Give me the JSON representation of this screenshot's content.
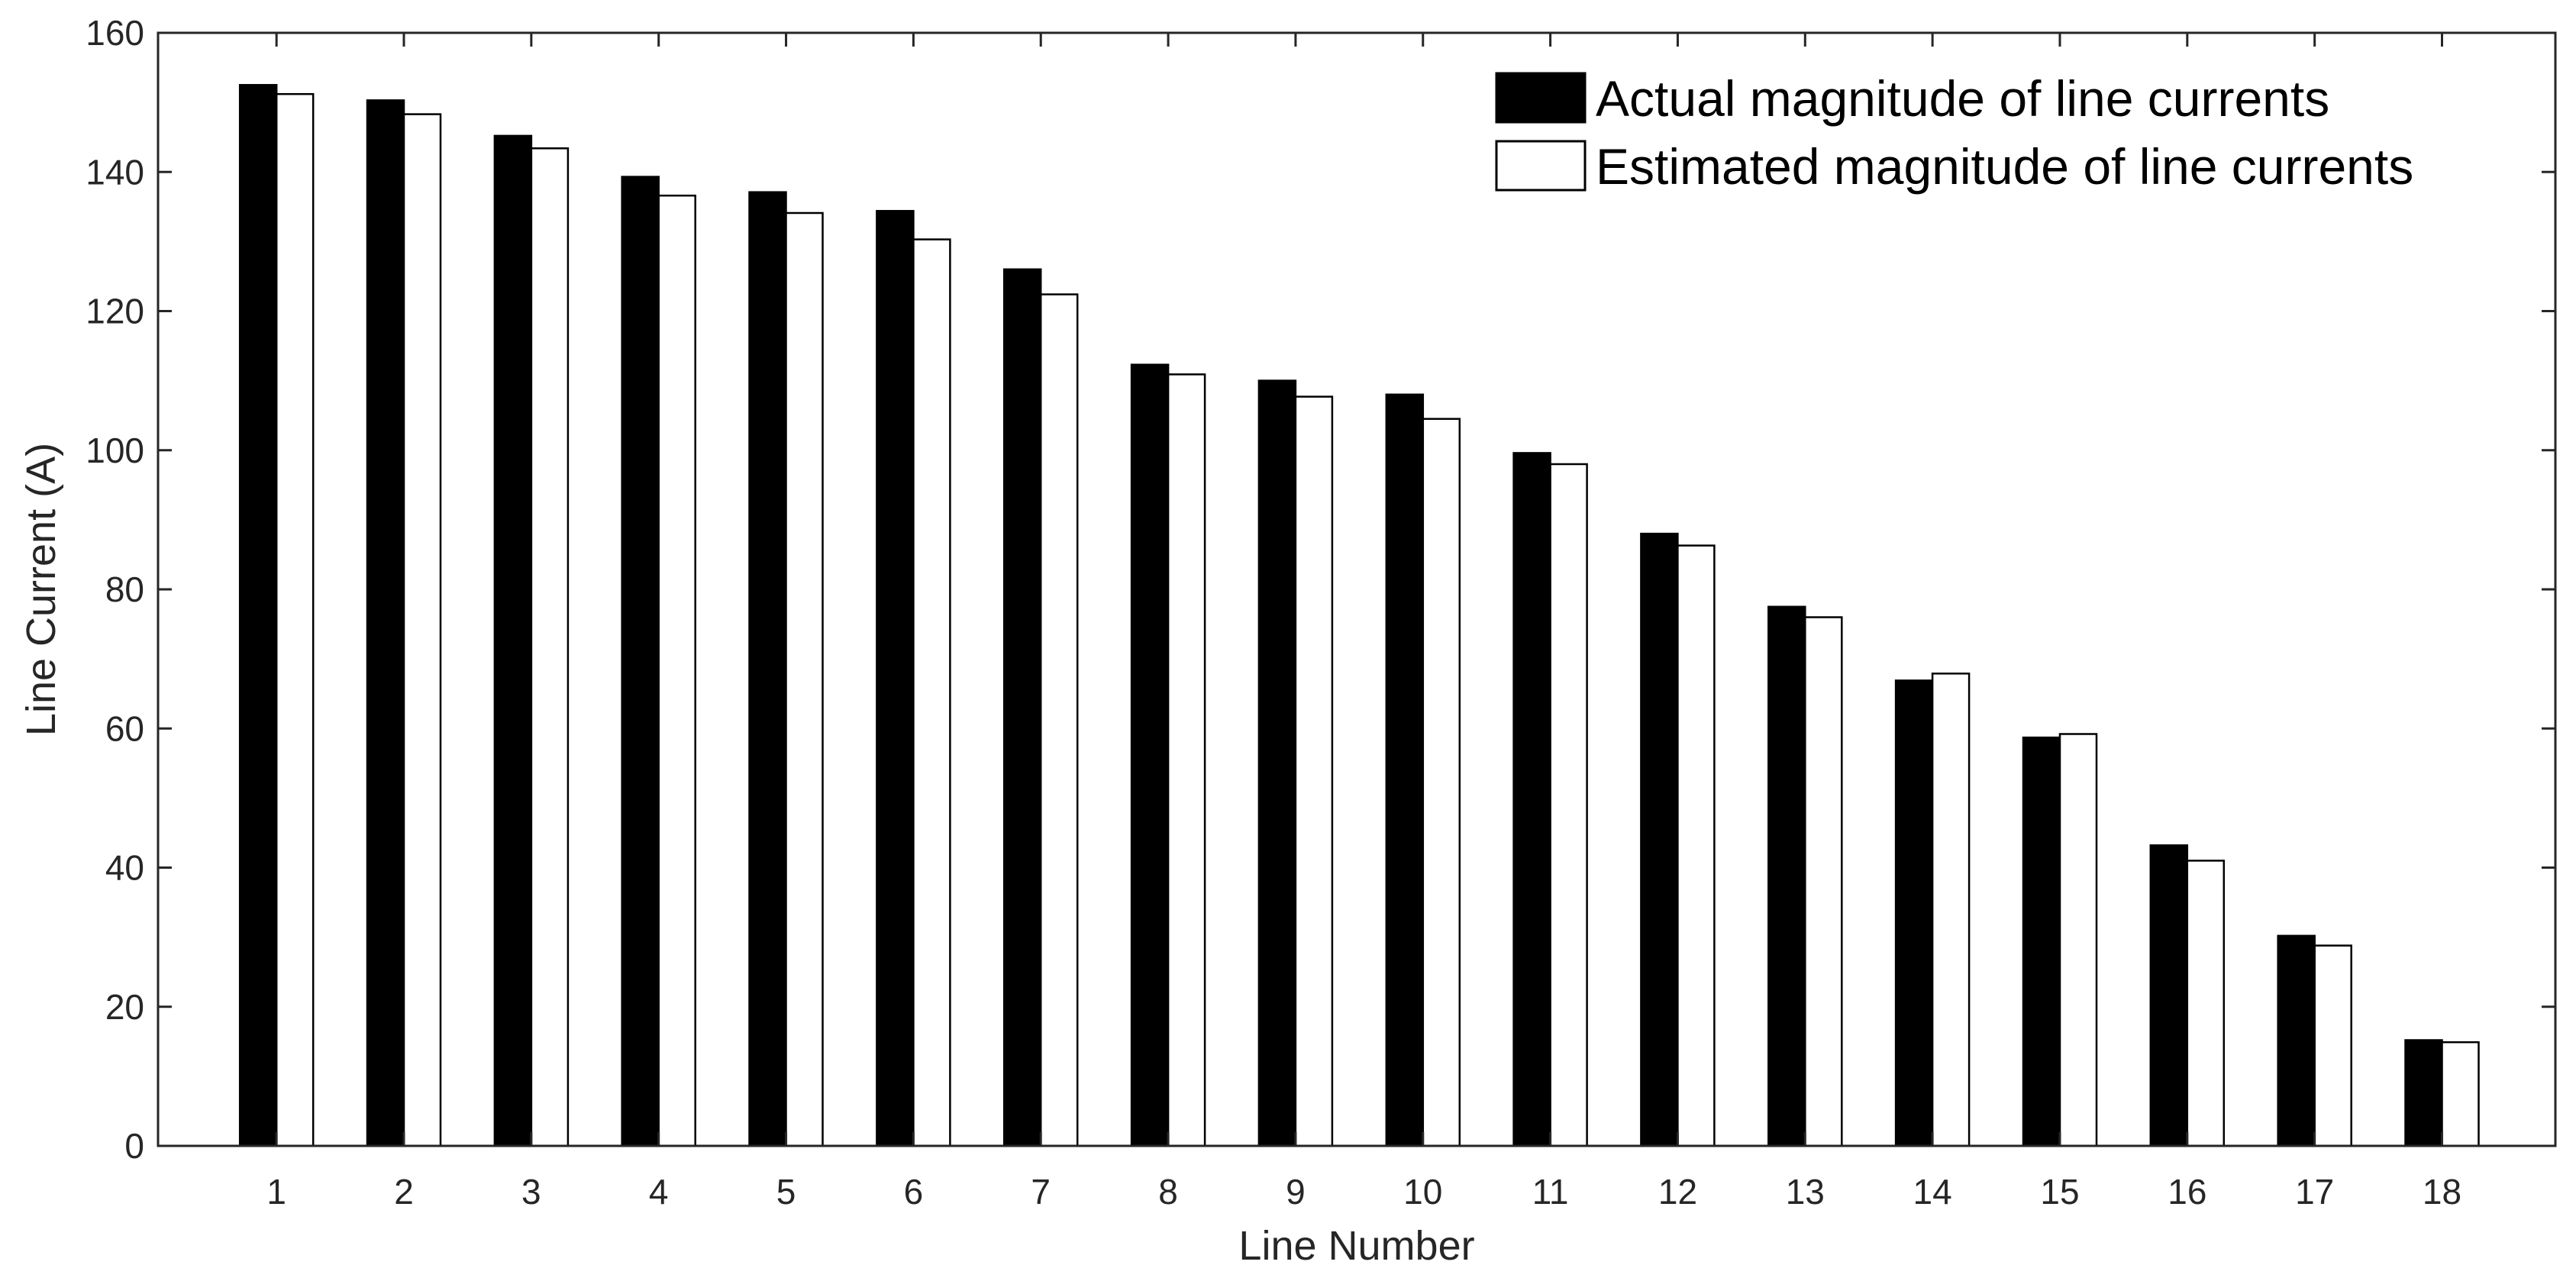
{
  "chart_data": {
    "type": "bar",
    "xlabel": "Line Number",
    "ylabel": "Line Current (A)",
    "ylim": [
      0,
      160
    ],
    "yticks": [
      0,
      20,
      40,
      60,
      80,
      100,
      120,
      140,
      160
    ],
    "categories": [
      "1",
      "2",
      "3",
      "4",
      "5",
      "6",
      "7",
      "8",
      "9",
      "10",
      "11",
      "12",
      "13",
      "14",
      "15",
      "16",
      "17",
      "18"
    ],
    "series": [
      {
        "name": "Actual magnitude of line currents",
        "color": "#000000",
        "values": [
          152.5,
          150.3,
          145.2,
          139.3,
          137.1,
          134.4,
          126.0,
          112.3,
          110.0,
          108.0,
          99.6,
          88.0,
          77.5,
          66.9,
          58.7,
          43.2,
          30.2,
          15.2
        ]
      },
      {
        "name": "Estimated magnitude of line currents",
        "color": "#ffffff",
        "values": [
          151.2,
          148.3,
          143.4,
          136.6,
          134.1,
          130.3,
          122.4,
          110.9,
          107.7,
          104.5,
          98.0,
          86.3,
          76.0,
          67.9,
          59.2,
          41.0,
          28.8,
          14.9
        ]
      }
    ],
    "grid": false,
    "legend_position": "top-right"
  }
}
